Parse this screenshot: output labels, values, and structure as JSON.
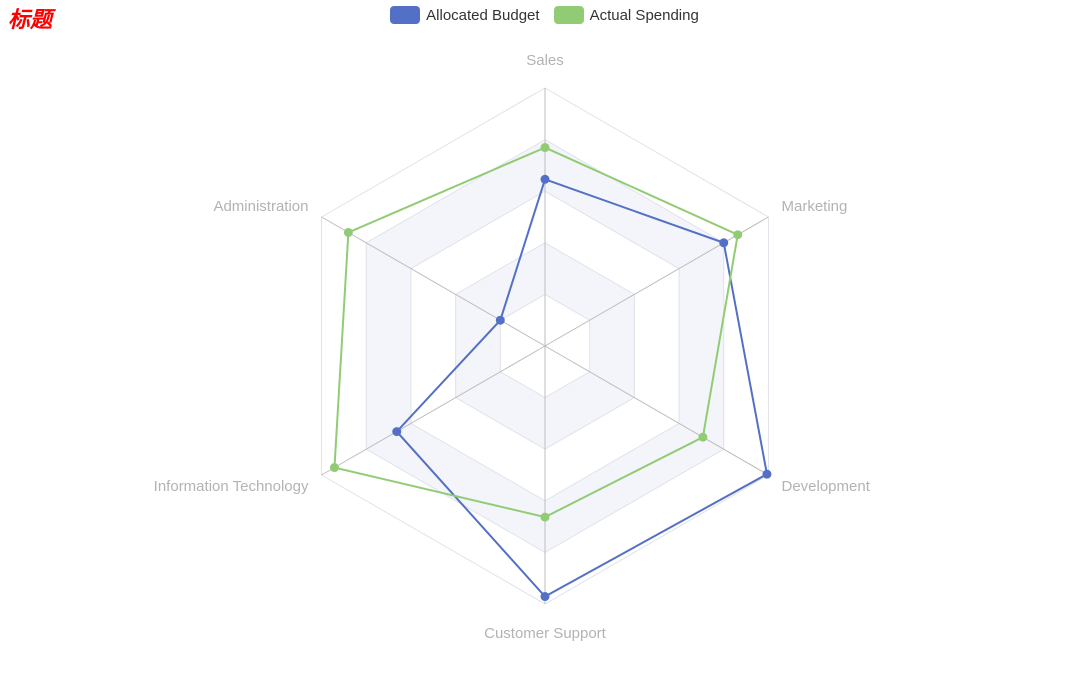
{
  "title": "标题",
  "colors": {
    "budget": "#5470c6",
    "spending": "#91cc75"
  },
  "chart_data": {
    "type": "radar",
    "indicators": [
      {
        "name": "Sales",
        "max": 6500
      },
      {
        "name": "Marketing",
        "max": 16000
      },
      {
        "name": "Development",
        "max": 30000
      },
      {
        "name": "Customer Support",
        "max": 38000
      },
      {
        "name": "Information Technology",
        "max": 52000
      },
      {
        "name": "Administration",
        "max": 25000
      }
    ],
    "series": [
      {
        "name": "Allocated Budget",
        "values": [
          4200,
          12800,
          29800,
          36900,
          34500,
          5000
        ]
      },
      {
        "name": "Actual Spending",
        "values": [
          5000,
          13800,
          21200,
          25200,
          49000,
          22000
        ]
      }
    ],
    "legend": "top-center",
    "split_number": 5
  }
}
